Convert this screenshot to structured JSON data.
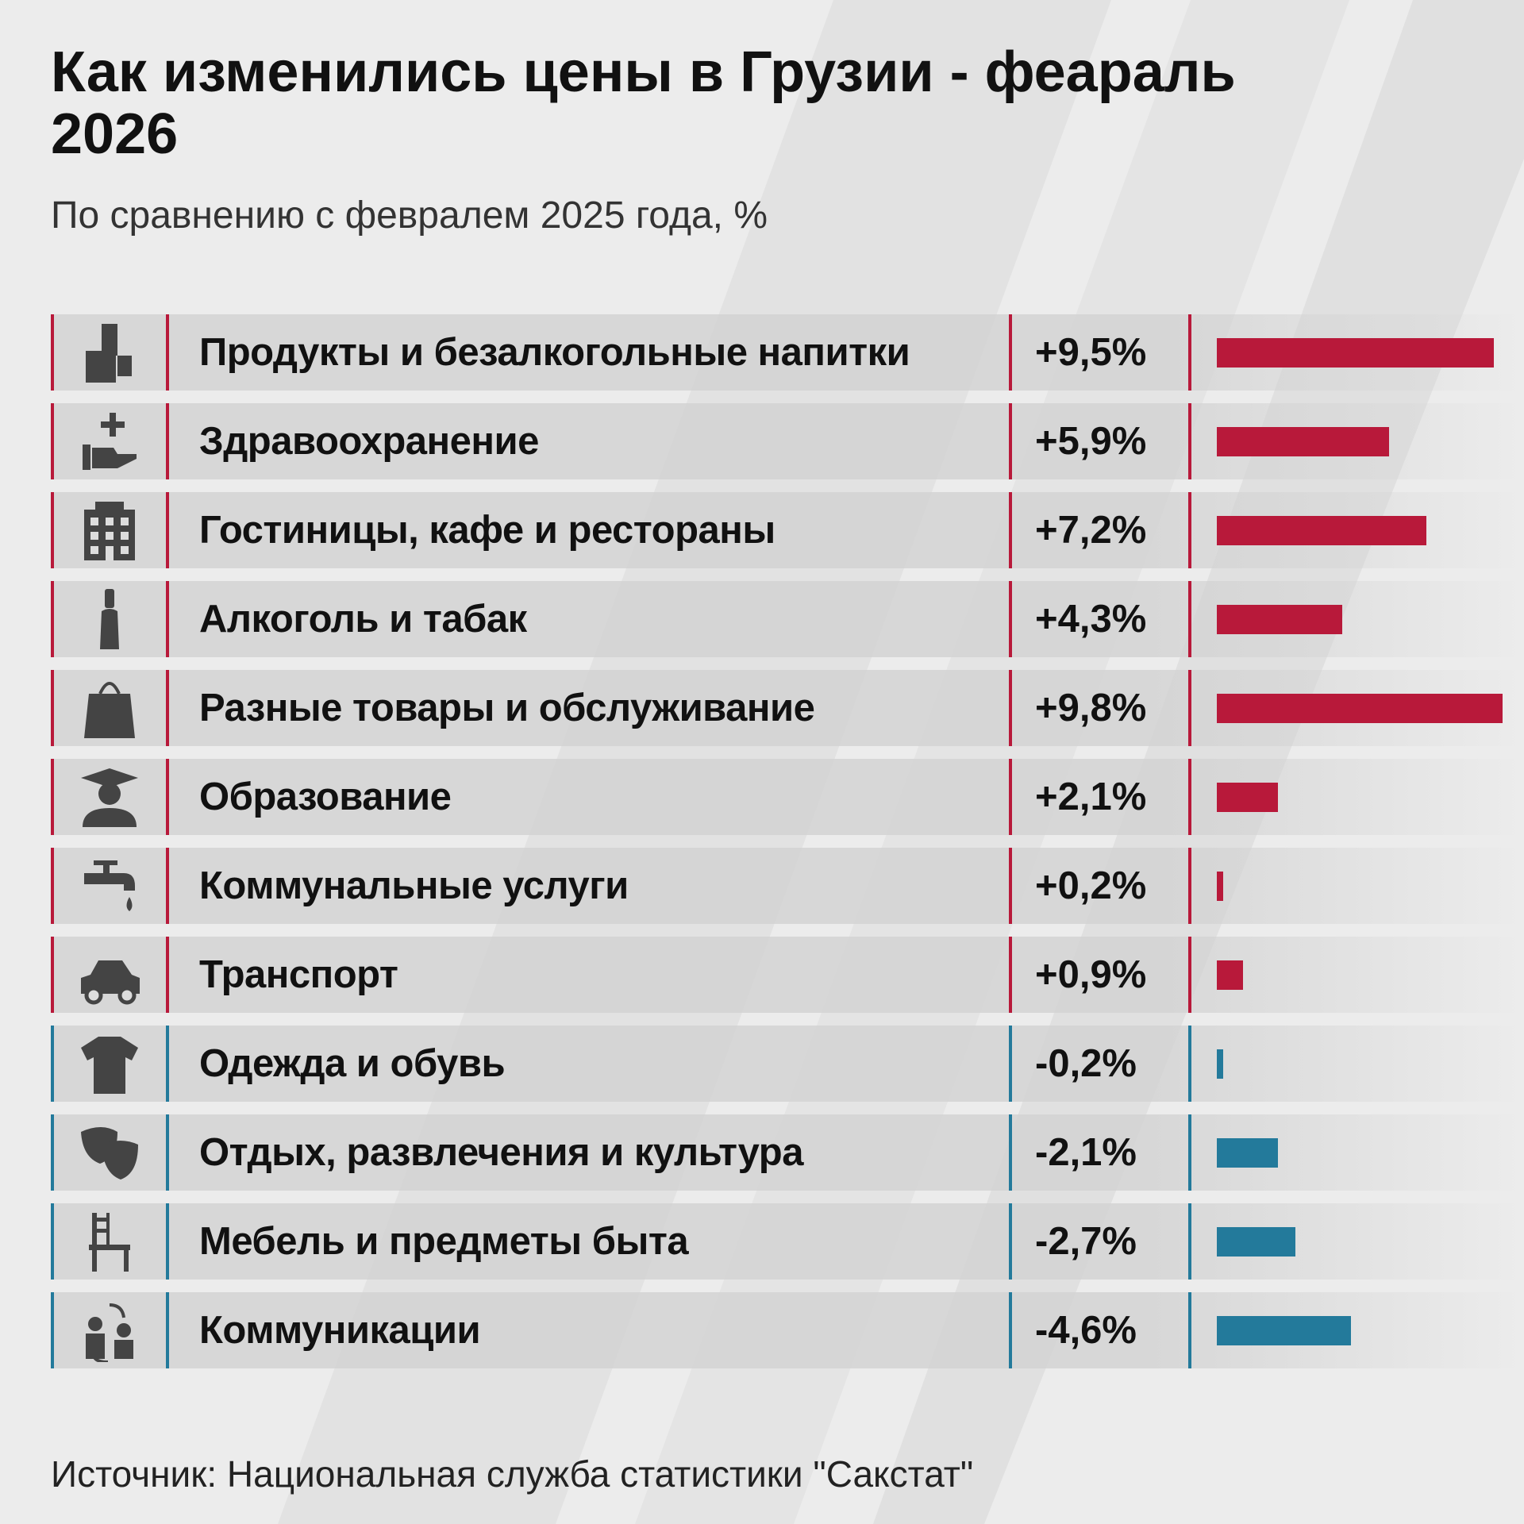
{
  "chart_data": {
    "type": "bar",
    "title": "Как изменились цены в Грузии - феараль 2026",
    "subtitle": "По сравнению с февралем 2025 года, %",
    "source": "Источник: Национальная служба статистики \"Сакстат\"",
    "colors": {
      "positive": "#b8193a",
      "negative": "#237a9b",
      "icon": "#444444"
    },
    "categories": [
      "Продукты и безалкогольные напитки",
      "Здравоохранение",
      "Гостиницы, кафе и рестораны",
      "Алкоголь и табак",
      "Разные товары и обслуживание",
      "Образование",
      "Коммунальные услуги",
      "Транспорт",
      "Одежда и обувь",
      "Отдых, развлечения и культура",
      "Мебель и предметы быта",
      "Коммуникации"
    ],
    "values": [
      9.5,
      5.9,
      7.2,
      4.3,
      9.8,
      2.1,
      0.2,
      0.9,
      -0.2,
      -2.1,
      -2.7,
      -4.6
    ],
    "labels": [
      "+9,5%",
      "+5,9%",
      "+7,2%",
      "+4,3%",
      "+9,8%",
      "+2,1%",
      "+0,2%",
      "+0,9%",
      "-0,2%",
      "-2,1%",
      "-2,7%",
      "-4,6%"
    ],
    "icons": [
      "groceries-icon",
      "healthcare-hand-plus-icon",
      "hotel-building-icon",
      "bottle-icon",
      "shopping-bag-icon",
      "graduate-icon",
      "faucet-icon",
      "car-icon",
      "tshirt-icon",
      "theater-masks-icon",
      "chair-icon",
      "communication-people-icon"
    ]
  }
}
